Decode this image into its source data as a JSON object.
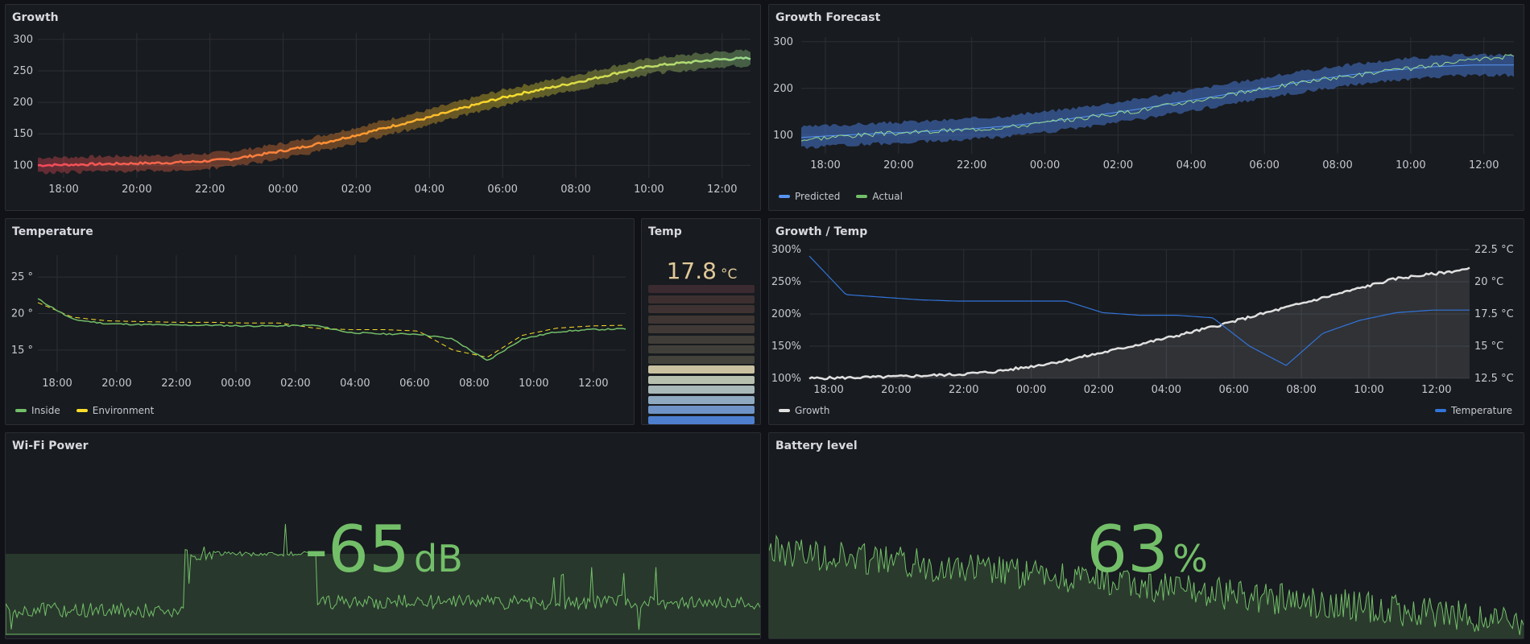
{
  "colors": {
    "bg": "#111217",
    "panel": "#181b1f",
    "grid": "#2c2f35",
    "green": "#73bf69",
    "yellow": "#fade2a",
    "blue": "#3274d9",
    "lightblue": "#5794f2",
    "white": "#e0e0e0"
  },
  "growth": {
    "title": "Growth",
    "chart_data": {
      "type": "line",
      "x_ticks": [
        "18:00",
        "20:00",
        "22:00",
        "00:00",
        "02:00",
        "04:00",
        "06:00",
        "08:00",
        "10:00",
        "12:00"
      ],
      "y_ticks": [
        100,
        150,
        200,
        250,
        300
      ],
      "ylim": [
        80,
        310
      ],
      "series": [
        {
          "values": [
            100,
            101,
            102,
            103,
            104,
            106,
            110,
            118,
            127,
            138,
            150,
            163,
            175,
            189,
            203,
            215,
            225,
            236,
            248,
            258,
            263,
            268,
            270
          ]
        }
      ]
    }
  },
  "forecast": {
    "title": "Growth Forecast",
    "legend": [
      {
        "label": "Predicted",
        "color": "#5794f2"
      },
      {
        "label": "Actual",
        "color": "#73bf69"
      }
    ],
    "chart_data": {
      "type": "area",
      "x_ticks": [
        "18:00",
        "20:00",
        "22:00",
        "00:00",
        "02:00",
        "04:00",
        "06:00",
        "08:00",
        "10:00",
        "12:00"
      ],
      "y_ticks": [
        100,
        200,
        300
      ],
      "ylim": [
        60,
        310
      ],
      "series": [
        {
          "name": "Predicted",
          "values": [
            95,
            100,
            104,
            108,
            113,
            120,
            130,
            142,
            155,
            170,
            185,
            200,
            215,
            228,
            238,
            246,
            250,
            250
          ]
        },
        {
          "name": "Actual",
          "values": [
            90,
            98,
            103,
            107,
            112,
            118,
            128,
            140,
            152,
            168,
            183,
            198,
            214,
            226,
            237,
            248,
            260,
            270
          ]
        }
      ]
    }
  },
  "temperature": {
    "title": "Temperature",
    "legend": [
      {
        "label": "Inside",
        "color": "#73bf69"
      },
      {
        "label": "Environment",
        "color": "#fade2a"
      }
    ],
    "chart_data": {
      "type": "line",
      "x_ticks": [
        "18:00",
        "20:00",
        "22:00",
        "00:00",
        "02:00",
        "04:00",
        "06:00",
        "08:00",
        "10:00",
        "12:00"
      ],
      "y_ticks": [
        "15 °",
        "20 °",
        "25 °"
      ],
      "ylim": [
        12,
        28
      ],
      "series": [
        {
          "name": "Inside",
          "values": [
            22,
            19.2,
            18.6,
            18.5,
            18.4,
            18.4,
            18.3,
            18.3,
            18.4,
            17.4,
            17.2,
            17.2,
            16.5,
            13.5,
            16.5,
            17.5,
            17.8,
            17.9
          ]
        },
        {
          "name": "Environment",
          "values": [
            21.5,
            19.5,
            19,
            18.9,
            18.8,
            18.8,
            18.7,
            18.7,
            18,
            17.8,
            17.8,
            17.6,
            15,
            14,
            17,
            18,
            18.3,
            18.4
          ]
        }
      ]
    }
  },
  "temp_stat": {
    "title": "Temp",
    "value": "17.8",
    "unit": "°C"
  },
  "growth_temp": {
    "title": "Growth / Temp",
    "legend_left": {
      "label": "Growth",
      "color": "#e0e0e0"
    },
    "legend_right": {
      "label": "Temperature",
      "color": "#3274d9"
    },
    "chart_data": {
      "type": "line",
      "x_ticks": [
        "18:00",
        "20:00",
        "22:00",
        "00:00",
        "02:00",
        "04:00",
        "06:00",
        "08:00",
        "10:00",
        "12:00"
      ],
      "y_ticks_left": [
        "100%",
        "150%",
        "200%",
        "250%",
        "300%"
      ],
      "y_ticks_right": [
        "12.5 °C",
        "15 °C",
        "17.5 °C",
        "20 °C",
        "22.5 °C"
      ],
      "series": [
        {
          "name": "Growth",
          "values": [
            100,
            101,
            102,
            104,
            106,
            110,
            118,
            128,
            140,
            153,
            166,
            180,
            195,
            210,
            225,
            240,
            255,
            262,
            270
          ]
        },
        {
          "name": "Temperature",
          "values": [
            22,
            19,
            18.8,
            18.6,
            18.5,
            18.5,
            18.5,
            18.5,
            17.6,
            17.4,
            17.4,
            17.2,
            15,
            13.5,
            16,
            17,
            17.6,
            17.8,
            17.8
          ]
        }
      ]
    }
  },
  "wifi": {
    "title": "Wi-Fi Power",
    "value": "-65",
    "unit": "dB"
  },
  "battery": {
    "title": "Battery level",
    "value": "63",
    "unit": "%"
  }
}
